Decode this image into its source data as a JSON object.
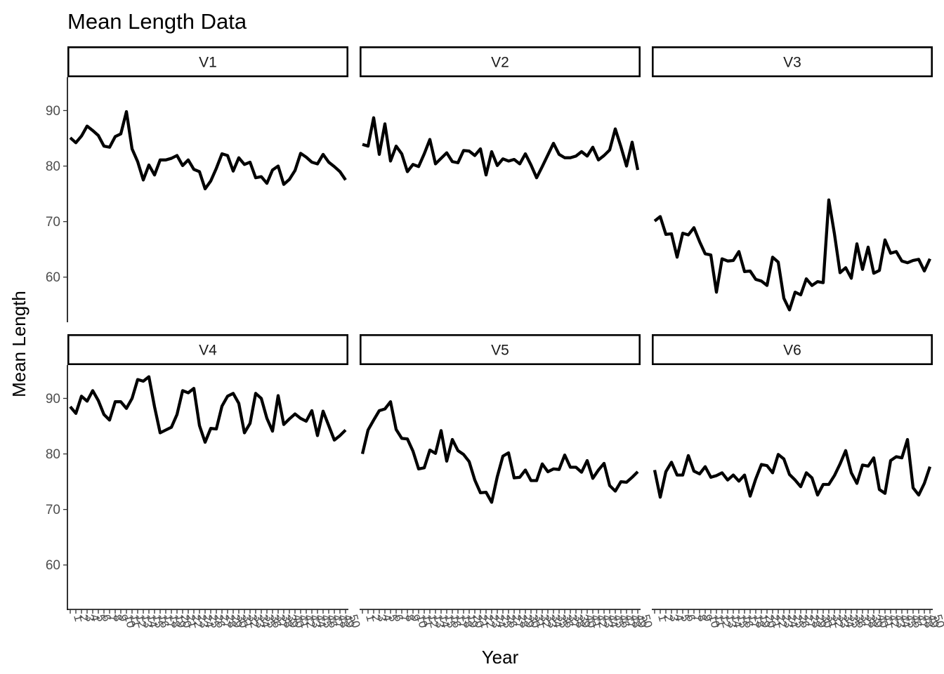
{
  "chart_data": {
    "type": "line",
    "title": "Mean Length Data",
    "xlabel": "Year",
    "ylabel": "Mean Length",
    "ylim": [
      52,
      96
    ],
    "y_ticks": [
      60,
      70,
      80,
      90
    ],
    "xlim": [
      0.5,
      50.5
    ],
    "x_ticks": [
      1,
      2,
      3,
      4,
      5,
      6,
      7,
      8,
      9,
      10,
      11,
      12,
      13,
      14,
      15,
      16,
      17,
      18,
      19,
      20,
      21,
      22,
      23,
      24,
      25,
      26,
      27,
      28,
      29,
      30,
      31,
      32,
      33,
      34,
      35,
      36,
      37,
      38,
      39,
      40,
      41,
      42,
      43,
      44,
      45,
      46,
      47,
      48,
      49,
      50
    ],
    "x_tick_labels": [
      "1",
      "2",
      "3",
      "4",
      "5",
      "6",
      "7",
      "8",
      "9",
      "10",
      "11",
      "12",
      "13",
      "14",
      "15",
      "16",
      "17",
      "18",
      "19",
      "20",
      "21",
      "22",
      "23",
      "24",
      "25",
      "26",
      "27",
      "28",
      "29",
      "30",
      "31",
      "32",
      "33",
      "34",
      "35",
      "36",
      "37",
      "38",
      "39",
      "40",
      "41",
      "42",
      "43",
      "44",
      "45",
      "46",
      "47",
      "48",
      "49",
      "50"
    ],
    "x": [
      1,
      2,
      3,
      4,
      5,
      6,
      7,
      8,
      9,
      10,
      11,
      12,
      13,
      14,
      15,
      16,
      17,
      18,
      19,
      20,
      21,
      22,
      23,
      24,
      25,
      26,
      27,
      28,
      29,
      30,
      31,
      32,
      33,
      34,
      35,
      36,
      37,
      38,
      39,
      40,
      41,
      42,
      43,
      44,
      45,
      46,
      47,
      48,
      49,
      50
    ],
    "grid": false,
    "facets": [
      "V1",
      "V2",
      "V3",
      "V4",
      "V5",
      "V6"
    ],
    "series": [
      {
        "name": "V1",
        "values": [
          85.1,
          84.2,
          85.4,
          87.2,
          86.4,
          85.5,
          83.6,
          83.4,
          85.3,
          85.8,
          89.8,
          83.1,
          80.8,
          77.5,
          80.2,
          78.4,
          81.1,
          81.1,
          81.4,
          81.9,
          80.1,
          81.1,
          79.4,
          79.0,
          75.9,
          77.3,
          79.6,
          82.2,
          81.9,
          79.1,
          81.5,
          80.3,
          80.7,
          77.9,
          78.1,
          76.9,
          79.3,
          80.0,
          76.7,
          77.6,
          79.2,
          82.3,
          81.6,
          80.7,
          80.4,
          82.1,
          80.7,
          79.9,
          79.0,
          77.5
        ]
      },
      {
        "name": "V2",
        "values": [
          83.9,
          83.6,
          88.7,
          82.1,
          87.6,
          80.9,
          83.6,
          82.2,
          79.0,
          80.3,
          79.9,
          82.2,
          84.8,
          80.4,
          81.4,
          82.4,
          80.8,
          80.6,
          82.8,
          82.7,
          81.9,
          83.1,
          78.4,
          82.6,
          80.1,
          81.3,
          80.9,
          81.2,
          80.4,
          82.2,
          80.2,
          77.9,
          79.9,
          82.0,
          84.1,
          82.1,
          81.5,
          81.5,
          81.8,
          82.6,
          81.8,
          83.4,
          81.1,
          81.9,
          82.9,
          86.7,
          83.5,
          80.0,
          84.3,
          79.3
        ]
      },
      {
        "name": "V3",
        "values": [
          70.1,
          70.9,
          67.7,
          67.8,
          63.6,
          67.9,
          67.6,
          68.9,
          66.4,
          64.2,
          64.0,
          57.3,
          63.3,
          62.9,
          63.0,
          64.6,
          61.0,
          61.1,
          59.6,
          59.3,
          58.5,
          63.6,
          62.7,
          56.2,
          54.1,
          57.3,
          56.8,
          59.7,
          58.5,
          59.2,
          59.0,
          73.9,
          67.8,
          60.8,
          61.7,
          59.8,
          66.0,
          61.4,
          65.4,
          60.7,
          61.2,
          66.7,
          64.3,
          64.6,
          62.9,
          62.6,
          63.0,
          63.2,
          61.1,
          63.3
        ]
      },
      {
        "name": "V4",
        "values": [
          88.5,
          87.3,
          90.4,
          89.5,
          91.4,
          89.6,
          87.1,
          86.1,
          89.4,
          89.4,
          88.2,
          90.0,
          93.4,
          93.1,
          93.9,
          88.5,
          83.8,
          84.3,
          84.8,
          87.1,
          91.4,
          91.0,
          91.8,
          85.1,
          82.1,
          84.6,
          84.5,
          88.6,
          90.4,
          90.9,
          89.1,
          83.8,
          85.5,
          90.9,
          90.0,
          86.4,
          84.1,
          90.5,
          85.3,
          86.3,
          87.2,
          86.4,
          85.9,
          87.8,
          83.3,
          87.7,
          85.1,
          82.5,
          83.3,
          84.3
        ]
      },
      {
        "name": "V5",
        "values": [
          80.0,
          84.3,
          86.1,
          87.8,
          88.1,
          89.4,
          84.4,
          82.8,
          82.7,
          80.5,
          77.3,
          77.5,
          80.7,
          80.1,
          84.2,
          78.7,
          82.6,
          80.6,
          79.9,
          78.6,
          75.3,
          73.0,
          73.1,
          71.3,
          75.9,
          79.6,
          80.2,
          75.7,
          75.8,
          77.1,
          75.2,
          75.2,
          78.2,
          76.8,
          77.3,
          77.2,
          79.8,
          77.6,
          77.6,
          76.7,
          78.8,
          75.6,
          77.1,
          78.3,
          74.3,
          73.3,
          75.0,
          74.9,
          75.8,
          76.8
        ]
      },
      {
        "name": "V6",
        "values": [
          77.1,
          72.2,
          76.8,
          78.5,
          76.2,
          76.2,
          79.7,
          76.9,
          76.4,
          77.7,
          75.8,
          76.1,
          76.6,
          75.3,
          76.2,
          75.1,
          76.2,
          72.4,
          75.5,
          78.1,
          77.9,
          76.6,
          79.9,
          79.1,
          76.3,
          75.3,
          74.1,
          76.6,
          75.7,
          72.6,
          74.5,
          74.5,
          76.1,
          78.2,
          80.6,
          76.6,
          74.7,
          78.0,
          77.8,
          79.3,
          73.6,
          72.9,
          78.8,
          79.5,
          79.3,
          82.6,
          73.9,
          72.6,
          74.7,
          77.7
        ]
      }
    ]
  }
}
